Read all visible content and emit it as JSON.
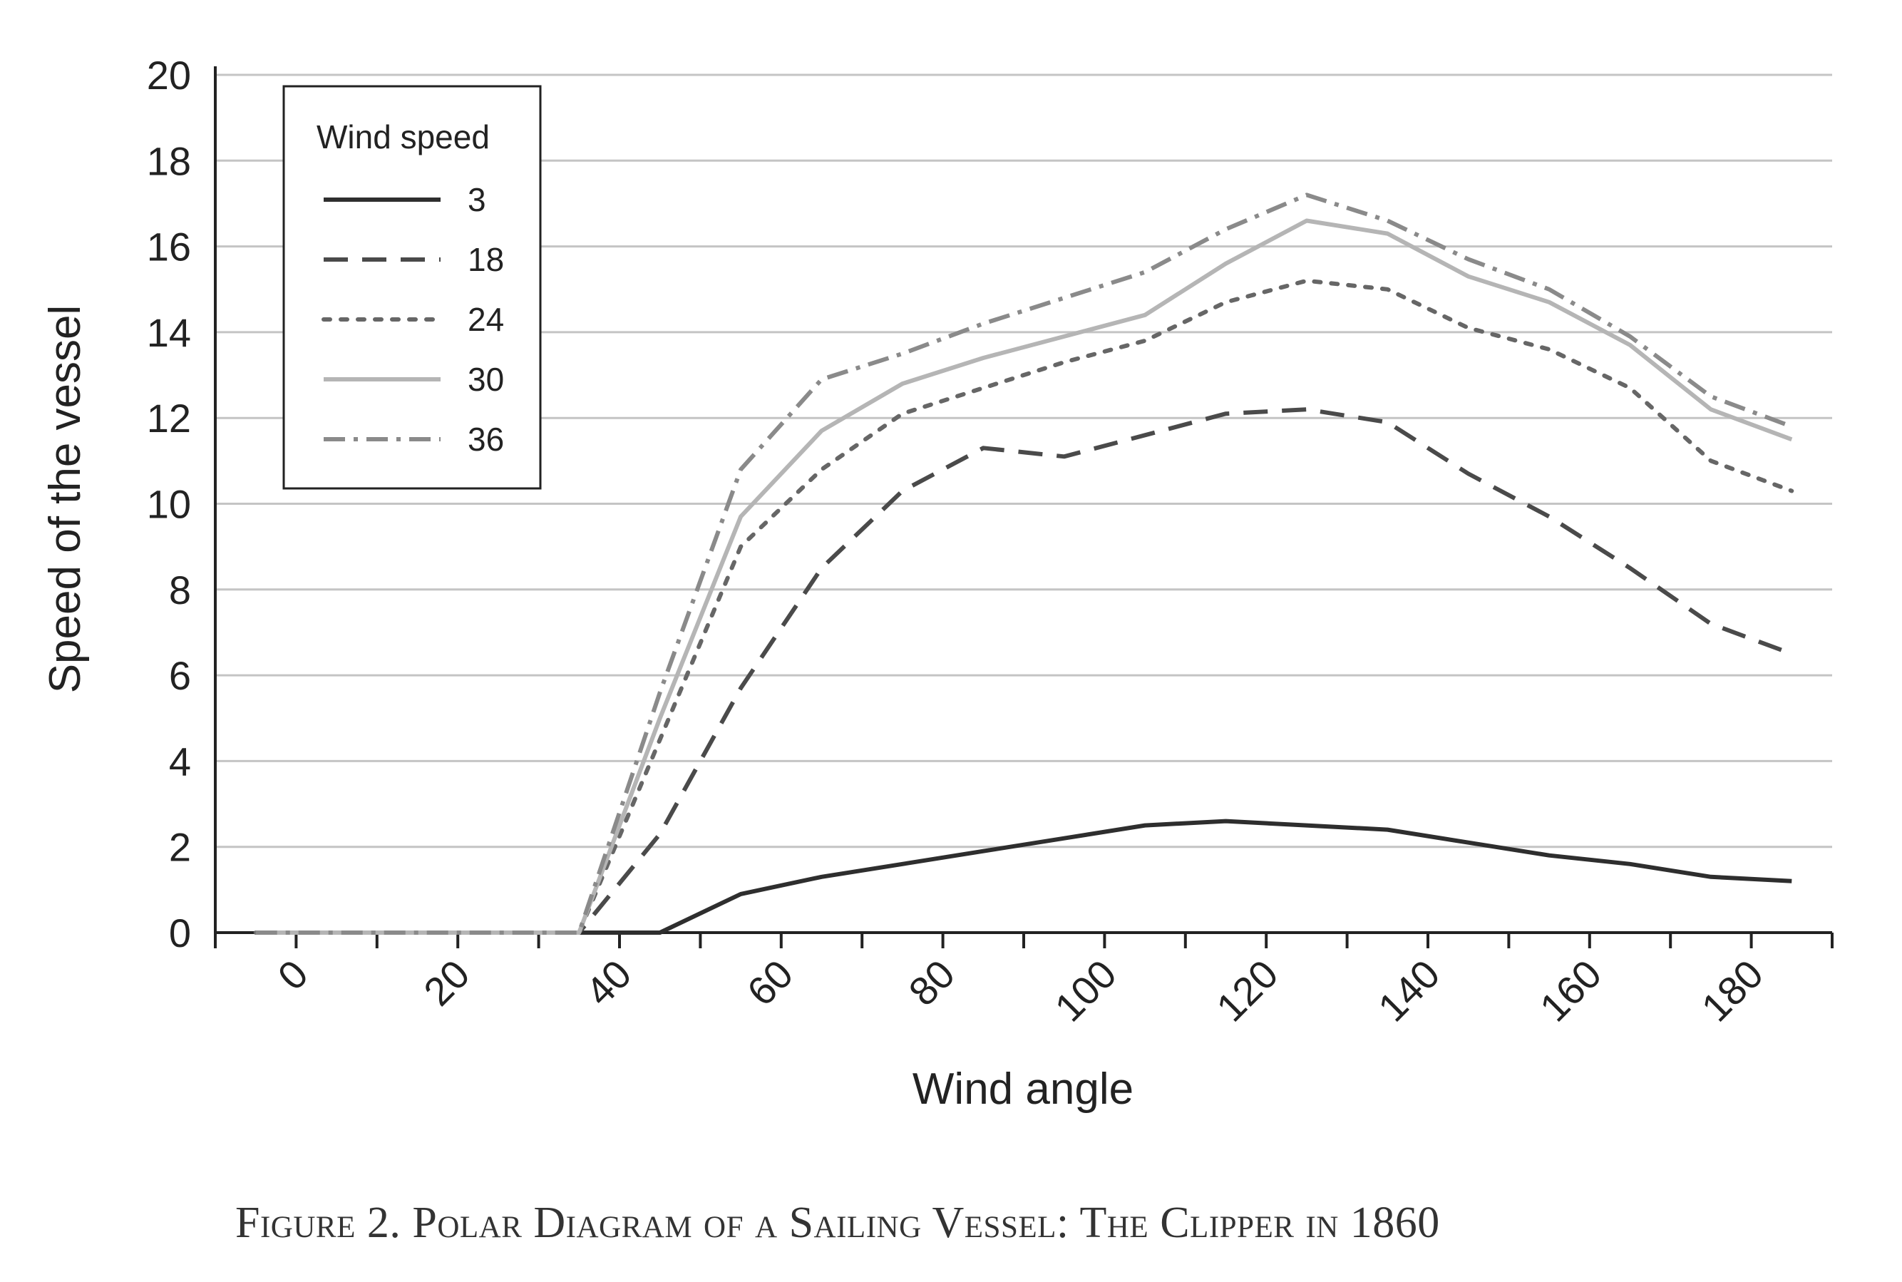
{
  "chart_data": {
    "type": "line",
    "title": "",
    "xlabel": "Wind angle",
    "ylabel": "Speed of the vessel",
    "xlim": [
      -10,
      190
    ],
    "ylim": [
      0,
      20
    ],
    "grid": true,
    "x_tick_labels": [
      "0",
      "20",
      "40",
      "60",
      "80",
      "100",
      "120",
      "140",
      "160",
      "180"
    ],
    "y_tick_labels": [
      "0",
      "2",
      "4",
      "6",
      "8",
      "10",
      "12",
      "14",
      "16",
      "18",
      "20"
    ],
    "legend": {
      "title": "Wind speed",
      "placement": "top-left"
    },
    "x": [
      -5,
      5,
      15,
      25,
      35,
      45,
      55,
      65,
      75,
      85,
      95,
      105,
      115,
      125,
      135,
      145,
      155,
      165,
      175,
      185
    ],
    "series": [
      {
        "name": "3",
        "style": "solid",
        "color": "#2e2e2e",
        "values": [
          0,
          0,
          0,
          0,
          0,
          0,
          0.9,
          1.3,
          1.6,
          1.9,
          2.2,
          2.5,
          2.6,
          2.5,
          2.4,
          2.1,
          1.8,
          1.6,
          1.3,
          1.2
        ]
      },
      {
        "name": "18",
        "style": "dashed",
        "color": "#4a4a4a",
        "values": [
          0,
          0,
          0,
          0,
          0,
          2.3,
          5.7,
          8.5,
          10.3,
          11.3,
          11.1,
          11.6,
          12.1,
          12.2,
          11.9,
          10.7,
          9.7,
          8.5,
          7.2,
          6.5
        ]
      },
      {
        "name": "24",
        "style": "dotted",
        "color": "#666666",
        "values": [
          0,
          0,
          0,
          0,
          0,
          4.5,
          9.0,
          10.8,
          12.1,
          12.7,
          13.3,
          13.8,
          14.7,
          15.2,
          15.0,
          14.1,
          13.6,
          12.7,
          11.0,
          10.3
        ]
      },
      {
        "name": "30",
        "style": "solid",
        "color": "#b5b5b5",
        "values": [
          0,
          0,
          0,
          0,
          0,
          5.0,
          9.7,
          11.7,
          12.8,
          13.4,
          13.9,
          14.4,
          15.6,
          16.6,
          16.3,
          15.3,
          14.7,
          13.7,
          12.2,
          11.5
        ]
      },
      {
        "name": "36",
        "style": "dash-dot",
        "color": "#8a8a8a",
        "values": [
          0,
          0,
          0,
          0,
          0,
          5.6,
          10.8,
          12.9,
          13.5,
          14.2,
          14.8,
          15.4,
          16.4,
          17.2,
          16.6,
          15.7,
          15.0,
          13.9,
          12.5,
          11.8
        ]
      }
    ]
  },
  "caption": "Figure 2. Polar Diagram of a Sailing Vessel: The Clipper in 1860"
}
